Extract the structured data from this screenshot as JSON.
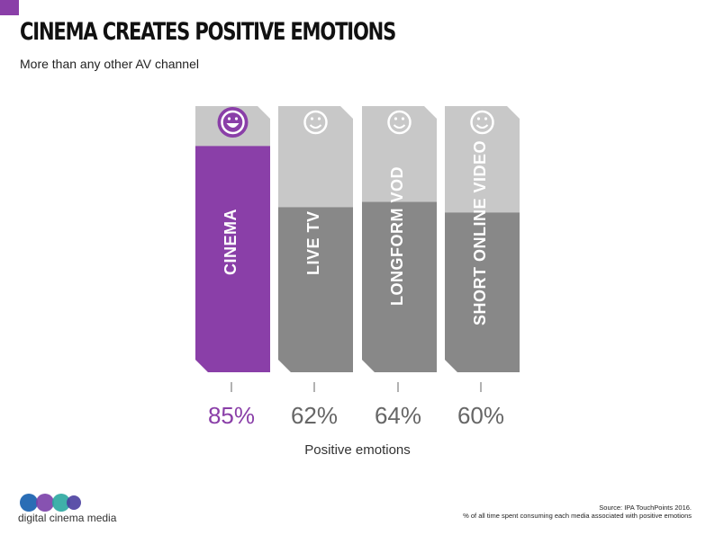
{
  "header": {
    "title": "CINEMA CREATES POSITIVE EMOTIONS",
    "subtitle": "More than any other AV channel"
  },
  "chart_data": {
    "type": "bar",
    "categories": [
      "CINEMA",
      "LIVE TV",
      "LONGFORM VOD",
      "SHORT ONLINE VIDEO"
    ],
    "values": [
      85,
      62,
      64,
      60
    ],
    "value_labels": [
      "85%",
      "62%",
      "64%",
      "60%"
    ],
    "unit": "%",
    "ylim": [
      0,
      100
    ],
    "xlabel": "Positive emotions",
    "icons": [
      "big-smile-icon",
      "smile-icon",
      "smile-icon",
      "smile-icon"
    ],
    "colors": {
      "highlight": "#8a3fa8",
      "bar": "#888888",
      "track": "#c8c8c8",
      "highlight_label": "#8a3fa8",
      "label": "#666666"
    }
  },
  "footer": {
    "source_line1": "Source: IPA TouchPoints 2016.",
    "source_line2": "% of all time spent consuming each media associated with positive emotions",
    "logo_text": "digital cinema media"
  }
}
